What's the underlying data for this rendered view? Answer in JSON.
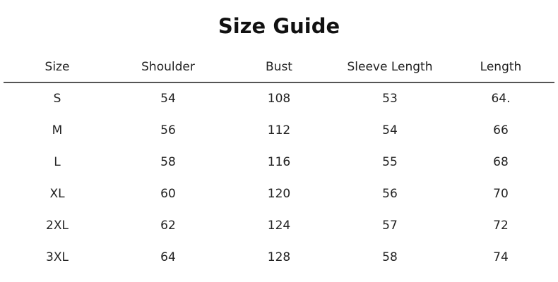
{
  "title": "Size Guide",
  "headers": [
    "Size",
    "Shoulder",
    "Bust",
    "Sleeve Length",
    "Length"
  ],
  "rows": [
    [
      "S",
      "54",
      "108",
      "53",
      "64."
    ],
    [
      "M",
      "56",
      "112",
      "54",
      "66"
    ],
    [
      "L",
      "58",
      "116",
      "55",
      "68"
    ],
    [
      "XL",
      "60",
      "120",
      "56",
      "70"
    ],
    [
      "2XL",
      "62",
      "124",
      "57",
      "72"
    ],
    [
      "3XL",
      "64",
      "128",
      "58",
      "74"
    ]
  ]
}
